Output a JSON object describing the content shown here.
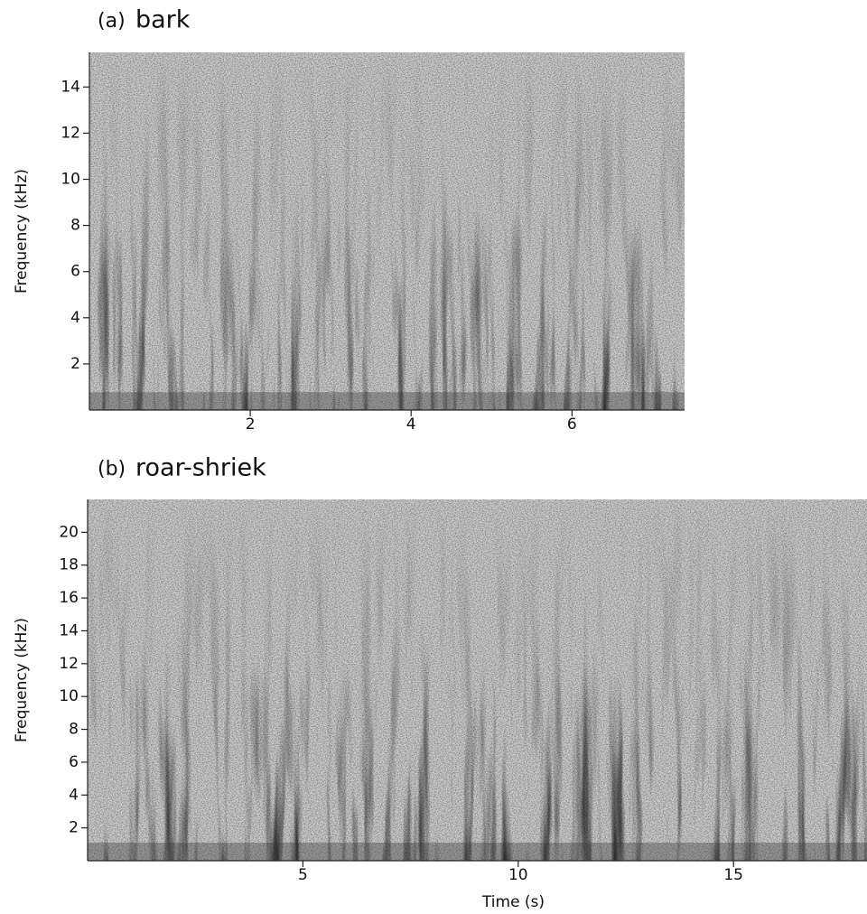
{
  "chart_data": [
    {
      "type": "spectrogram",
      "panel_label": "(a)",
      "title": "bark",
      "ylabel": "Frequency (kHz)",
      "xlim": [
        0,
        7.4
      ],
      "xticks": [
        2,
        4,
        6
      ],
      "ylim": [
        0,
        15.5
      ],
      "yticks": [
        2,
        4,
        6,
        8,
        10,
        12,
        14
      ]
    },
    {
      "type": "spectrogram",
      "panel_label": "(b)",
      "title": "roar-shriek",
      "ylabel": "Frequency (kHz)",
      "xlabel": "Time (s)",
      "xlim": [
        0,
        18.1
      ],
      "xticks": [
        5,
        10,
        15
      ],
      "ylim": [
        0,
        22
      ],
      "yticks": [
        2,
        4,
        6,
        8,
        10,
        12,
        14,
        16,
        18,
        20
      ]
    }
  ]
}
